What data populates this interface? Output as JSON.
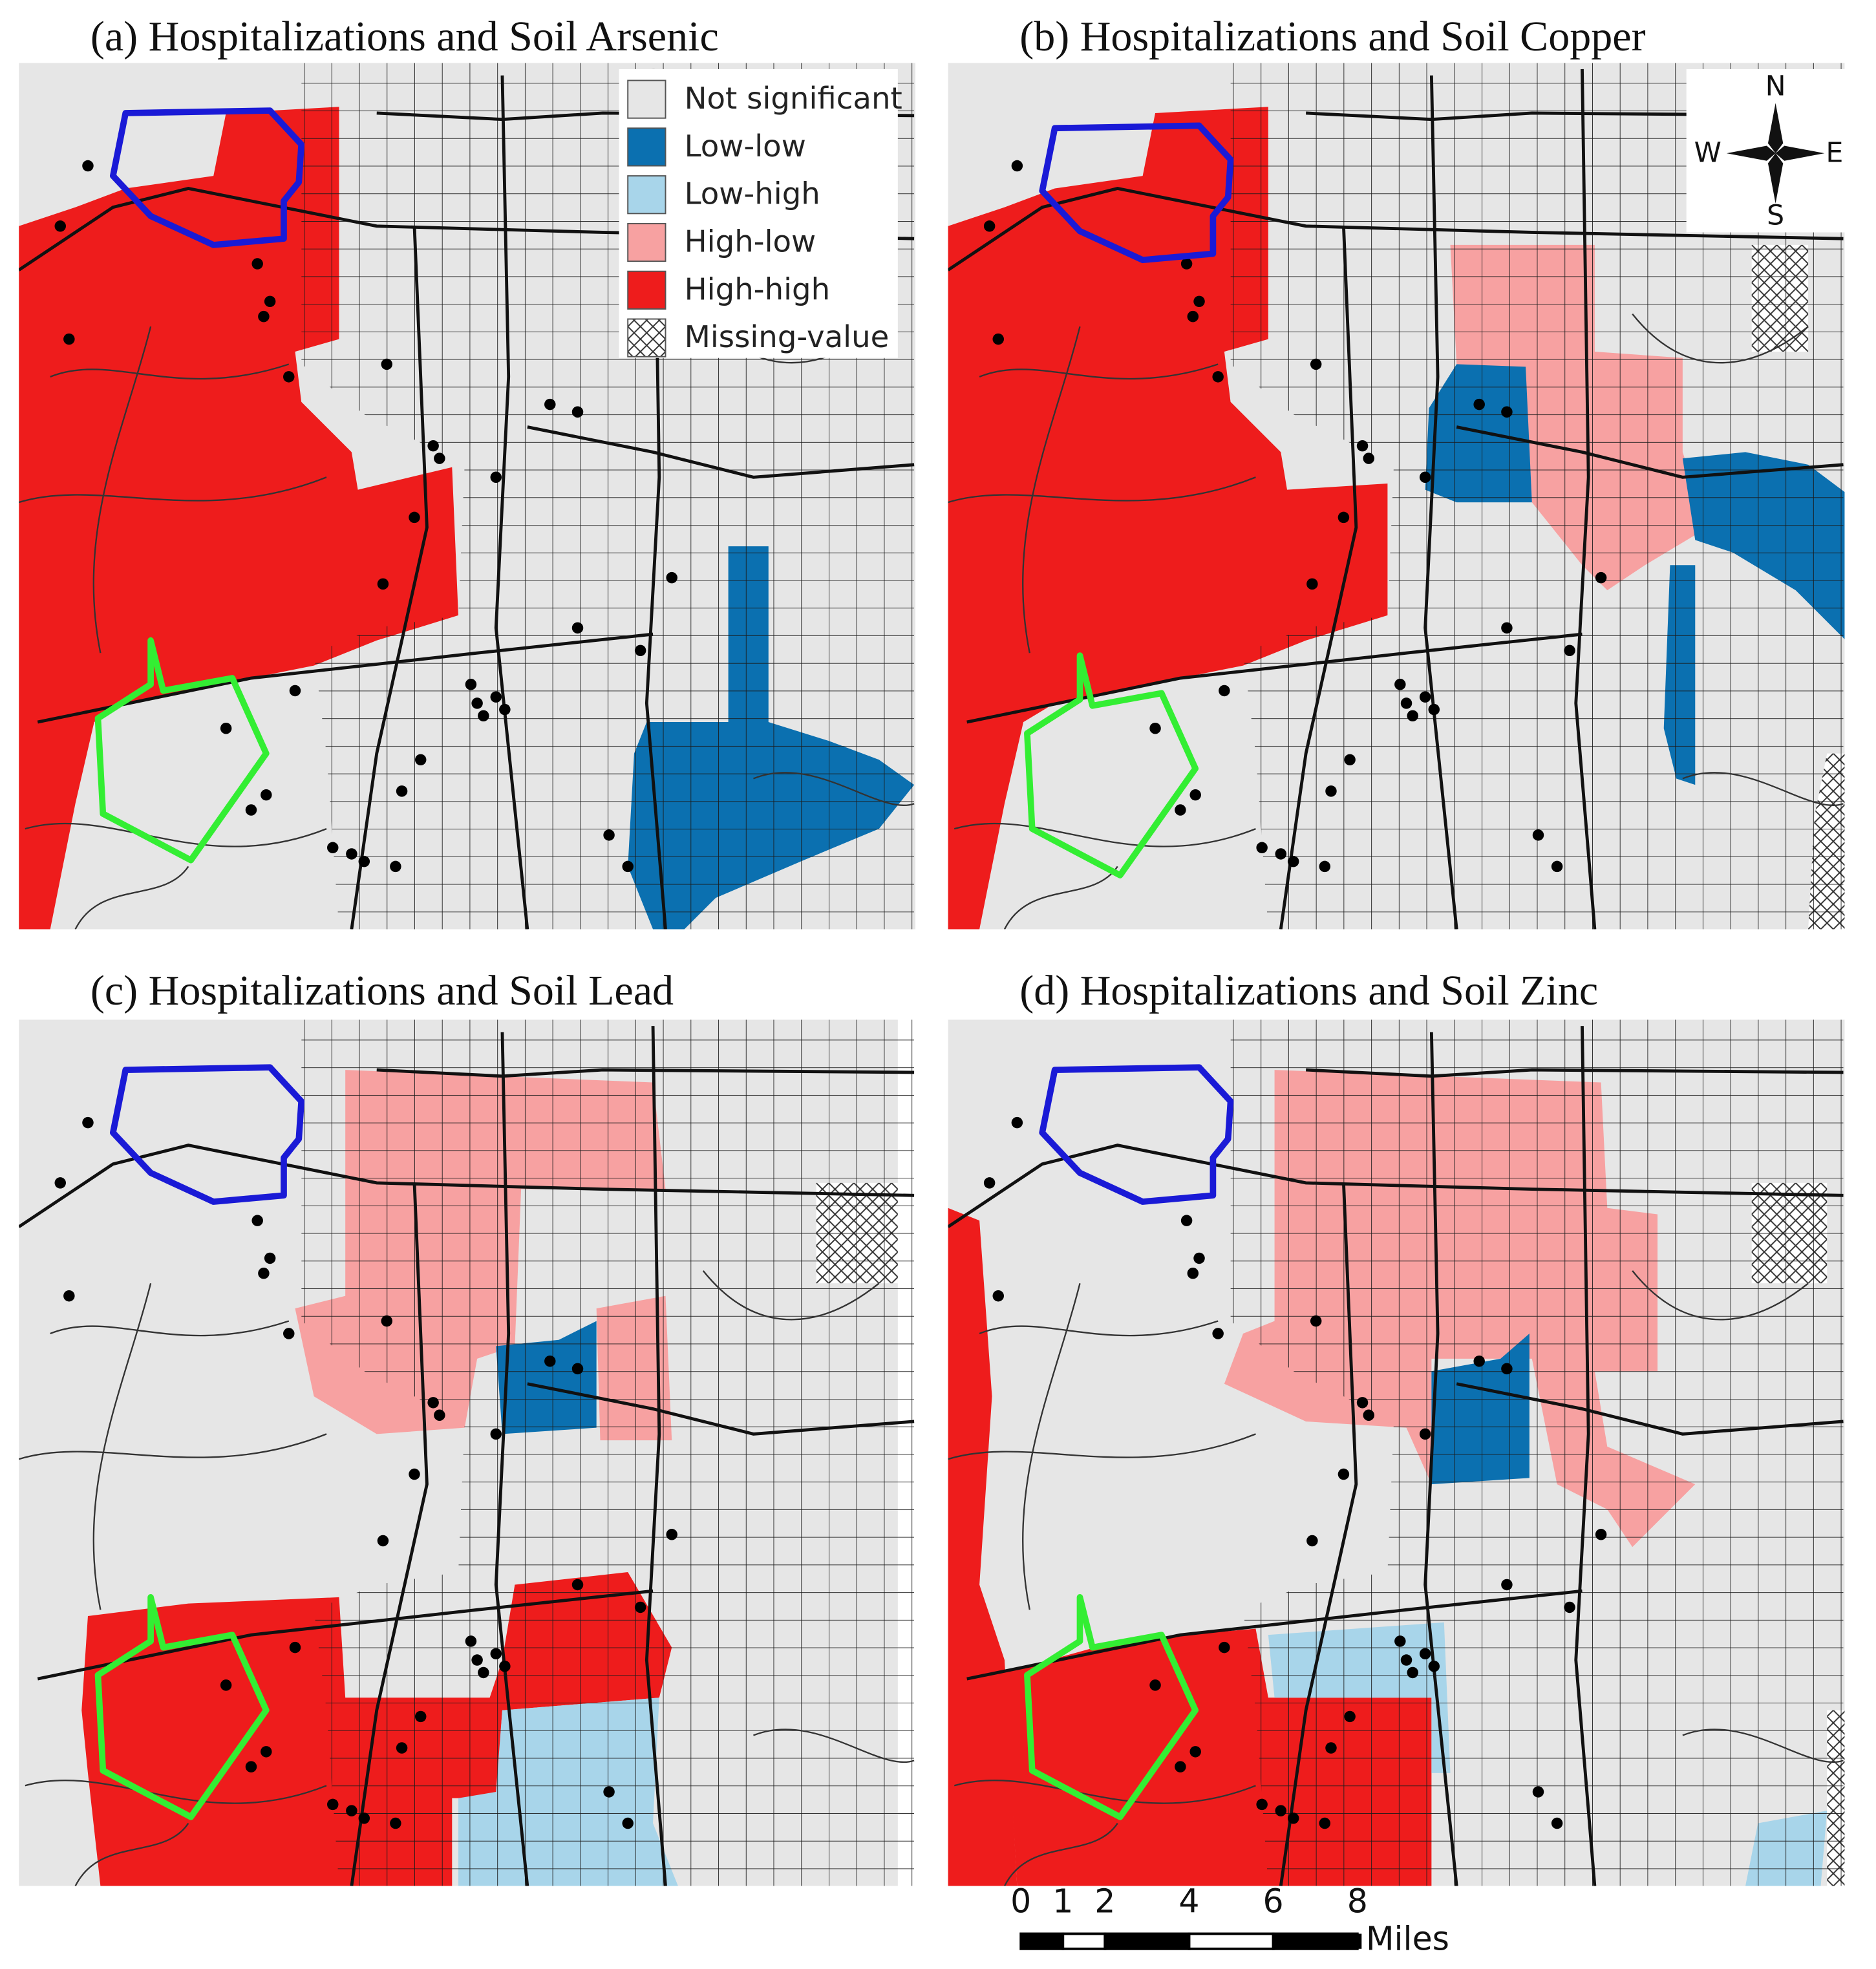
{
  "panels": [
    {
      "title": "(a)  Hospitalizations and Soil Arsenic"
    },
    {
      "title": "(b)  Hospitalizations and Soil Copper"
    },
    {
      "title": "(c)  Hospitalizations and Soil Lead"
    },
    {
      "title": "(d)  Hospitalizations and Soil Zinc"
    }
  ],
  "legend": {
    "items": [
      "Not significant",
      "Low-low",
      "Low-high",
      "High-low",
      "High-high",
      "Missing-value"
    ]
  },
  "compass": {
    "north": "N",
    "south": "S",
    "east": "E",
    "west": "W"
  },
  "scale_bar": {
    "ticks": [
      0,
      1,
      2,
      4,
      6,
      8
    ],
    "unit": "Miles"
  }
}
